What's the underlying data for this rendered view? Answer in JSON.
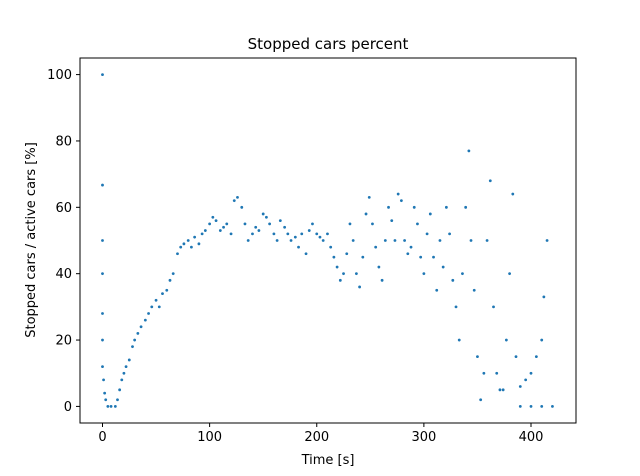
{
  "chart_data": {
    "type": "scatter",
    "title": "Stopped cars percent",
    "x_label": "Time [s]",
    "y_label": "Stopped cars / active cars [%]",
    "color": "#1f77b4",
    "xlim": [
      -21,
      442
    ],
    "ylim": [
      -5,
      105
    ],
    "xticks": [
      0,
      100,
      200,
      300,
      400
    ],
    "yticks": [
      0,
      20,
      40,
      60,
      80,
      100
    ],
    "grid": false,
    "x": [
      0,
      0,
      0,
      0,
      0,
      0,
      0,
      1,
      2,
      3,
      5,
      8,
      12,
      14,
      16,
      18,
      20,
      22,
      25,
      28,
      30,
      33,
      36,
      40,
      43,
      46,
      50,
      53,
      56,
      60,
      63,
      66,
      70,
      73,
      76,
      80,
      83,
      86,
      90,
      93,
      96,
      100,
      103,
      106,
      110,
      113,
      116,
      120,
      123,
      126,
      130,
      133,
      136,
      140,
      143,
      146,
      150,
      153,
      156,
      160,
      163,
      166,
      170,
      173,
      176,
      180,
      183,
      186,
      190,
      193,
      196,
      200,
      203,
      206,
      210,
      213,
      216,
      219,
      222,
      225,
      228,
      231,
      234,
      237,
      240,
      243,
      246,
      249,
      252,
      255,
      258,
      261,
      264,
      267,
      270,
      273,
      276,
      279,
      282,
      285,
      288,
      291,
      294,
      297,
      300,
      303,
      306,
      309,
      312,
      315,
      318,
      321,
      324,
      327,
      330,
      333,
      336,
      339,
      342,
      344,
      347,
      350,
      353,
      356,
      359,
      362,
      365,
      368,
      371,
      374,
      377,
      380,
      383,
      386,
      390,
      395,
      400,
      405,
      410,
      412,
      415,
      390,
      400,
      410,
      420
    ],
    "y": [
      100,
      66.7,
      50,
      40,
      28,
      20,
      12,
      8,
      4,
      2,
      0,
      0,
      0,
      2,
      5,
      8,
      10,
      12,
      14,
      18,
      20,
      22,
      24,
      26,
      28,
      30,
      32,
      30,
      34,
      35,
      38,
      40,
      46,
      48,
      49,
      50,
      48,
      51,
      49,
      52,
      53,
      55,
      57,
      56,
      53,
      54,
      55,
      52,
      62,
      63,
      60,
      55,
      50,
      52,
      54,
      53,
      58,
      57,
      55,
      52,
      50,
      56,
      54,
      52,
      50,
      51,
      48,
      52,
      46,
      53,
      55,
      52,
      51,
      50,
      52,
      48,
      45,
      42,
      38,
      40,
      46,
      55,
      50,
      40,
      36,
      45,
      58,
      63,
      55,
      48,
      42,
      38,
      50,
      60,
      56,
      50,
      64,
      62,
      50,
      46,
      48,
      60,
      55,
      45,
      40,
      52,
      58,
      45,
      35,
      50,
      42,
      60,
      52,
      38,
      30,
      20,
      40,
      60,
      77,
      50,
      35,
      15,
      2,
      10,
      50,
      68,
      30,
      10,
      5,
      5,
      20,
      40,
      64,
      15,
      6,
      8,
      10,
      15,
      20,
      33,
      50,
      0,
      0,
      0,
      0
    ]
  }
}
